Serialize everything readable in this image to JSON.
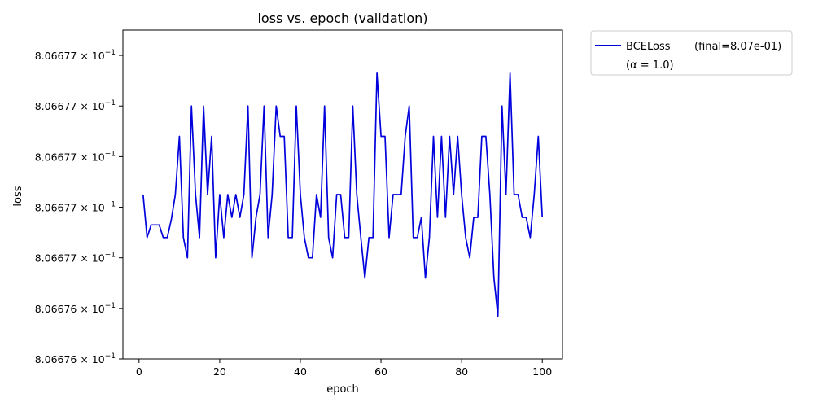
{
  "chart_data": {
    "type": "line",
    "title": "loss vs. epoch (validation)",
    "xlabel": "epoch",
    "ylabel": "loss",
    "xlim": [
      -4,
      105
    ],
    "ylim": [
      0.8066758,
      0.8066771
    ],
    "x_ticks": [
      0,
      20,
      40,
      60,
      80,
      100
    ],
    "y_ticks": [
      {
        "value": 0.806677,
        "base": "8.06677",
        "exp": "−1"
      },
      {
        "value": 0.8066768,
        "base": "8.06677",
        "exp": "−1"
      },
      {
        "value": 0.8066766,
        "base": "8.06677",
        "exp": "−1"
      },
      {
        "value": 0.8066764,
        "base": "8.06677",
        "exp": "−1"
      },
      {
        "value": 0.8066762,
        "base": "8.06677",
        "exp": "−1"
      },
      {
        "value": 0.806676,
        "base": "8.06676",
        "exp": "−1"
      },
      {
        "value": 0.8066758,
        "base": "8.06676",
        "exp": "−1"
      }
    ],
    "grid": false,
    "legend": {
      "placement": "outside-top-right",
      "entries": [
        {
          "label": "BCELoss",
          "detail": "(final=8.07e-01)",
          "sub": "(α = 1.0)",
          "color": "#0000dd"
        }
      ]
    },
    "series": [
      {
        "name": "BCELoss",
        "color": "#0000dd",
        "x": [
          1,
          2,
          3,
          4,
          5,
          6,
          7,
          8,
          9,
          10,
          11,
          12,
          13,
          14,
          15,
          16,
          17,
          18,
          19,
          20,
          21,
          22,
          23,
          24,
          25,
          26,
          27,
          28,
          29,
          30,
          31,
          32,
          33,
          34,
          35,
          36,
          37,
          38,
          39,
          40,
          41,
          42,
          43,
          44,
          45,
          46,
          47,
          48,
          49,
          50,
          51,
          52,
          53,
          54,
          55,
          56,
          57,
          58,
          59,
          60,
          61,
          62,
          63,
          64,
          65,
          66,
          67,
          68,
          69,
          70,
          71,
          72,
          73,
          74,
          75,
          76,
          77,
          78,
          79,
          80,
          81,
          82,
          83,
          84,
          85,
          86,
          87,
          88,
          89,
          90,
          91,
          92,
          93,
          94,
          95,
          96,
          97,
          98,
          99,
          100
        ],
        "y": [
          0.80667645,
          0.80667628,
          0.80667633,
          0.80667633,
          0.80667633,
          0.80667628,
          0.80667628,
          0.80667635,
          0.80667645,
          0.80667668,
          0.80667628,
          0.8066762,
          0.8066768,
          0.80667645,
          0.80667628,
          0.8066768,
          0.80667645,
          0.80667668,
          0.8066762,
          0.80667645,
          0.80667628,
          0.80667645,
          0.80667636,
          0.80667645,
          0.80667636,
          0.80667645,
          0.8066768,
          0.8066762,
          0.80667636,
          0.80667645,
          0.8066768,
          0.80667628,
          0.80667645,
          0.8066768,
          0.80667668,
          0.80667668,
          0.80667628,
          0.80667628,
          0.8066768,
          0.80667645,
          0.80667628,
          0.8066762,
          0.8066762,
          0.80667645,
          0.80667636,
          0.8066768,
          0.80667628,
          0.8066762,
          0.80667645,
          0.80667645,
          0.80667628,
          0.80667628,
          0.8066768,
          0.80667645,
          0.80667628,
          0.80667612,
          0.80667628,
          0.80667628,
          0.80667693,
          0.80667668,
          0.80667668,
          0.80667628,
          0.80667645,
          0.80667645,
          0.80667645,
          0.80667668,
          0.8066768,
          0.80667628,
          0.80667628,
          0.80667636,
          0.80667612,
          0.80667628,
          0.80667668,
          0.80667636,
          0.80667668,
          0.80667636,
          0.80667668,
          0.80667645,
          0.80667668,
          0.80667645,
          0.80667628,
          0.8066762,
          0.80667636,
          0.80667636,
          0.80667668,
          0.80667668,
          0.80667645,
          0.80667612,
          0.80667597,
          0.8066768,
          0.80667645,
          0.80667693,
          0.80667645,
          0.80667645,
          0.80667636,
          0.80667636,
          0.80667628,
          0.80667645,
          0.80667668,
          0.80667636
        ]
      }
    ]
  }
}
